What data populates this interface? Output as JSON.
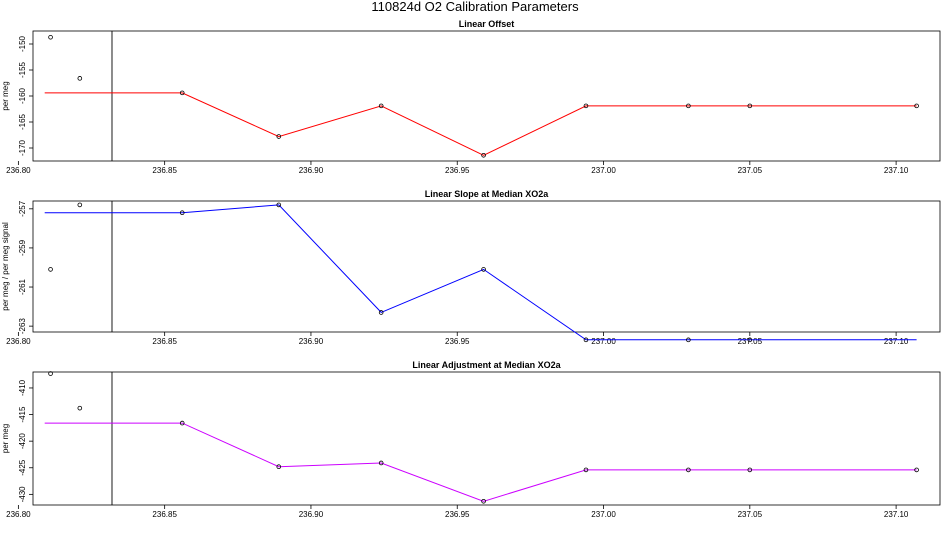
{
  "title": "110824d   O2 Calibration Parameters",
  "chart_data": [
    {
      "type": "scatter",
      "title": "Linear Offset",
      "ylabel": "per meg",
      "xlim": [
        236.805,
        237.115
      ],
      "ylim": [
        -172.5,
        -147.5
      ],
      "xticks": [
        236.8,
        236.85,
        236.9,
        236.95,
        237.0,
        237.05,
        237.1
      ],
      "xtick_labels": [
        "236.80",
        "236.85",
        "236.90",
        "236.95",
        "237.00",
        "237.05",
        "237.10"
      ],
      "yticks": [
        -150,
        -155,
        -160,
        -165,
        -170
      ],
      "ytick_labels": [
        "-150",
        "-155",
        "-160",
        "-165",
        "-170"
      ],
      "vline_x": 236.832,
      "line_color": "#ff0000",
      "points": [
        {
          "x": 236.811,
          "y": -148.7
        },
        {
          "x": 236.821,
          "y": -156.6
        },
        {
          "x": 236.856,
          "y": -159.4
        },
        {
          "x": 236.889,
          "y": -167.8
        },
        {
          "x": 236.924,
          "y": -161.9
        },
        {
          "x": 236.959,
          "y": -171.4
        },
        {
          "x": 236.994,
          "y": -161.9
        },
        {
          "x": 237.029,
          "y": -161.9
        },
        {
          "x": 237.05,
          "y": -161.9
        },
        {
          "x": 237.107,
          "y": -161.9
        }
      ],
      "line": [
        {
          "x": 236.809,
          "y": -159.4
        },
        {
          "x": 236.856,
          "y": -159.4
        },
        {
          "x": 236.889,
          "y": -167.8
        },
        {
          "x": 236.924,
          "y": -161.9
        },
        {
          "x": 236.959,
          "y": -171.4
        },
        {
          "x": 236.994,
          "y": -161.9
        },
        {
          "x": 237.029,
          "y": -161.9
        },
        {
          "x": 237.05,
          "y": -161.9
        },
        {
          "x": 237.107,
          "y": -161.9
        }
      ]
    },
    {
      "type": "scatter",
      "title": "Linear Slope at Median XO2a",
      "ylabel": "per meg / per meg signal",
      "xlim": [
        236.805,
        237.115
      ],
      "ylim": [
        -263.3,
        -256.6
      ],
      "xticks": [
        236.8,
        236.85,
        236.9,
        236.95,
        237.0,
        237.05,
        237.1
      ],
      "xtick_labels": [
        "236.80",
        "236.85",
        "236.90",
        "236.95",
        "237.00",
        "237.05",
        "237.10"
      ],
      "yticks": [
        -257,
        -259,
        -261,
        -263
      ],
      "ytick_labels": [
        "-257",
        "-259",
        "-261",
        "-263"
      ],
      "vline_x": 236.832,
      "line_color": "#0000ff",
      "points": [
        {
          "x": 236.811,
          "y": -260.1
        },
        {
          "x": 236.821,
          "y": -256.8
        },
        {
          "x": 236.856,
          "y": -257.2
        },
        {
          "x": 236.889,
          "y": -256.8
        },
        {
          "x": 236.924,
          "y": -262.3
        },
        {
          "x": 236.959,
          "y": -260.1
        },
        {
          "x": 236.994,
          "y": -263.7
        },
        {
          "x": 237.029,
          "y": -263.7
        },
        {
          "x": 237.05,
          "y": -263.7
        }
      ],
      "line": [
        {
          "x": 236.809,
          "y": -257.2
        },
        {
          "x": 236.856,
          "y": -257.2
        },
        {
          "x": 236.889,
          "y": -256.8
        },
        {
          "x": 236.924,
          "y": -262.3
        },
        {
          "x": 236.959,
          "y": -260.1
        },
        {
          "x": 236.994,
          "y": -263.7
        },
        {
          "x": 237.029,
          "y": -263.7
        },
        {
          "x": 237.05,
          "y": -263.7
        },
        {
          "x": 237.107,
          "y": -263.7
        }
      ]
    },
    {
      "type": "scatter",
      "title": "Linear Adjustment at Median XO2a",
      "ylabel": "per meg",
      "xlim": [
        236.805,
        237.115
      ],
      "ylim": [
        -432,
        -407
      ],
      "xticks": [
        236.8,
        236.85,
        236.9,
        236.95,
        237.0,
        237.05,
        237.1
      ],
      "xtick_labels": [
        "236.80",
        "236.85",
        "236.90",
        "236.95",
        "237.00",
        "237.05",
        "237.10"
      ],
      "yticks": [
        -410,
        -415,
        -420,
        -425,
        -430
      ],
      "ytick_labels": [
        "-410",
        "-415",
        "-420",
        "-425",
        "-430"
      ],
      "vline_x": 236.832,
      "line_color": "#cc00ff",
      "points": [
        {
          "x": 236.811,
          "y": -407.3
        },
        {
          "x": 236.821,
          "y": -413.8
        },
        {
          "x": 236.856,
          "y": -416.6
        },
        {
          "x": 236.889,
          "y": -424.8
        },
        {
          "x": 236.924,
          "y": -424.1
        },
        {
          "x": 236.959,
          "y": -431.3
        },
        {
          "x": 236.994,
          "y": -425.4
        },
        {
          "x": 237.029,
          "y": -425.4
        },
        {
          "x": 237.05,
          "y": -425.4
        },
        {
          "x": 237.107,
          "y": -425.4
        }
      ],
      "line": [
        {
          "x": 236.809,
          "y": -416.6
        },
        {
          "x": 236.856,
          "y": -416.6
        },
        {
          "x": 236.889,
          "y": -424.8
        },
        {
          "x": 236.924,
          "y": -424.1
        },
        {
          "x": 236.959,
          "y": -431.3
        },
        {
          "x": 236.994,
          "y": -425.4
        },
        {
          "x": 237.029,
          "y": -425.4
        },
        {
          "x": 237.05,
          "y": -425.4
        },
        {
          "x": 237.107,
          "y": -425.4
        }
      ]
    }
  ]
}
